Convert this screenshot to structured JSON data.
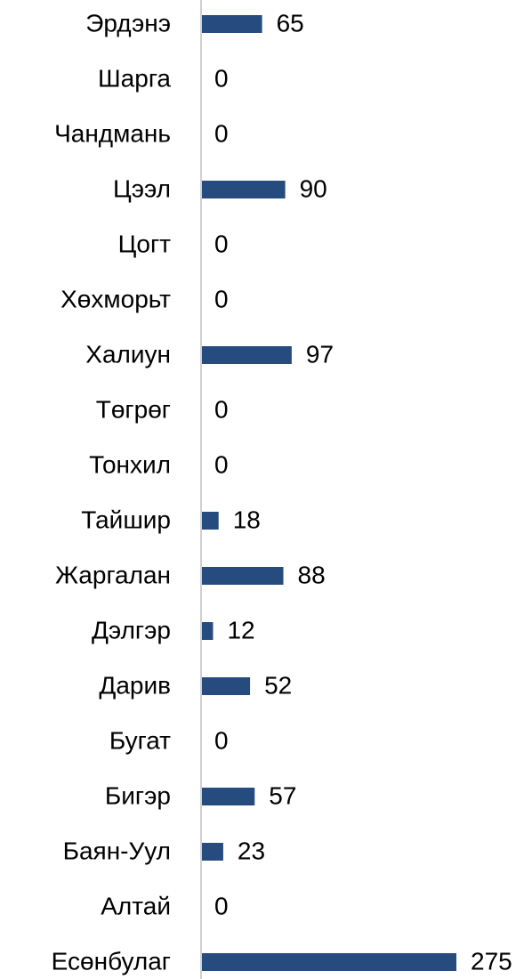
{
  "chart_data": {
    "type": "bar",
    "orientation": "horizontal",
    "categories": [
      "Эрдэнэ",
      "Шарга",
      "Чандмань",
      "Цээл",
      "Цогт",
      "Хөхморьт",
      "Халиун",
      "Төгрөг",
      "Тонхил",
      "Тайшир",
      "Жаргалан",
      "Дэлгэр",
      "Дарив",
      "Бугат",
      "Бигэр",
      "Баян-Уул",
      "Алтай",
      "Есөнбулаг"
    ],
    "values": [
      65,
      0,
      0,
      90,
      0,
      0,
      97,
      0,
      0,
      18,
      88,
      12,
      52,
      0,
      57,
      23,
      0,
      275
    ],
    "color": "#264b7e",
    "xlim": [
      0,
      300
    ]
  }
}
